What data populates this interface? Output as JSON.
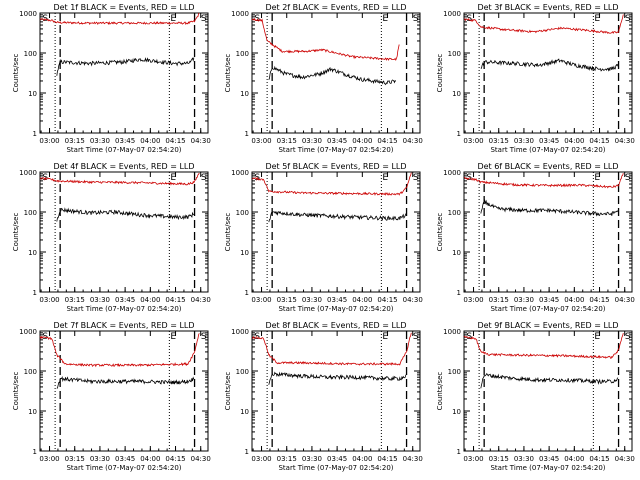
{
  "chart_data": {
    "type": "line",
    "ylabel": "Counts/sec",
    "xlabel": "Start Time (07-May-07 02:54:20)",
    "yscale": "log",
    "ylim": [
      1,
      1000
    ],
    "ytick_labels": [
      "1",
      "10",
      "100",
      "1000"
    ],
    "xlim_minutes": [
      0,
      100
    ],
    "xtick_labels": [
      "03:00",
      "03:15",
      "03:30",
      "03:45",
      "04:00",
      "04:15",
      "04:30"
    ],
    "marker_labels": [
      "S",
      "E",
      "S"
    ],
    "series_colors": {
      "events": "#000000",
      "lld": "#cc0000"
    },
    "panels": [
      {
        "title": "Det 1f BLACK = Events, RED = LLD",
        "lld": [
          [
            0,
            700
          ],
          [
            7,
            650
          ],
          [
            10,
            580
          ],
          [
            30,
            560
          ],
          [
            60,
            560
          ],
          [
            88,
            560
          ],
          [
            92,
            620
          ],
          [
            95,
            1000
          ]
        ],
        "events": [
          [
            10,
            30
          ],
          [
            12,
            60
          ],
          [
            30,
            55
          ],
          [
            50,
            60
          ],
          [
            60,
            70
          ],
          [
            80,
            55
          ],
          [
            88,
            55
          ],
          [
            90,
            60
          ],
          [
            92,
            80
          ]
        ]
      },
      {
        "title": "Det 2f BLACK = Events, RED = LLD",
        "lld": [
          [
            0,
            700
          ],
          [
            6,
            650
          ],
          [
            9,
            200
          ],
          [
            18,
            110
          ],
          [
            32,
            110
          ],
          [
            42,
            120
          ],
          [
            50,
            100
          ],
          [
            60,
            80
          ],
          [
            82,
            70
          ],
          [
            86,
            70
          ],
          [
            88,
            200
          ]
        ],
        "events": [
          [
            10,
            20
          ],
          [
            12,
            45
          ],
          [
            20,
            30
          ],
          [
            30,
            25
          ],
          [
            40,
            30
          ],
          [
            47,
            40
          ],
          [
            55,
            30
          ],
          [
            65,
            22
          ],
          [
            80,
            18
          ],
          [
            86,
            20
          ]
        ]
      },
      {
        "title": "Det 3f BLACK = Events, RED = LLD",
        "lld": [
          [
            0,
            700
          ],
          [
            7,
            650
          ],
          [
            10,
            450
          ],
          [
            25,
            380
          ],
          [
            42,
            340
          ],
          [
            58,
            420
          ],
          [
            70,
            380
          ],
          [
            88,
            320
          ],
          [
            92,
            330
          ],
          [
            95,
            1000
          ]
        ],
        "events": [
          [
            10,
            40
          ],
          [
            12,
            60
          ],
          [
            30,
            55
          ],
          [
            45,
            50
          ],
          [
            57,
            65
          ],
          [
            66,
            50
          ],
          [
            80,
            40
          ],
          [
            88,
            40
          ],
          [
            92,
            50
          ]
        ]
      },
      {
        "title": "Det 4f BLACK = Events, RED = LLD",
        "lld": [
          [
            0,
            700
          ],
          [
            7,
            650
          ],
          [
            10,
            600
          ],
          [
            30,
            560
          ],
          [
            60,
            540
          ],
          [
            88,
            500
          ],
          [
            92,
            560
          ],
          [
            95,
            1000
          ]
        ],
        "events": [
          [
            10,
            60
          ],
          [
            12,
            115
          ],
          [
            30,
            95
          ],
          [
            45,
            100
          ],
          [
            60,
            85
          ],
          [
            80,
            75
          ],
          [
            88,
            75
          ],
          [
            92,
            90
          ]
        ]
      },
      {
        "title": "Det 5f BLACK = Events, RED = LLD",
        "lld": [
          [
            0,
            700
          ],
          [
            7,
            650
          ],
          [
            10,
            330
          ],
          [
            30,
            300
          ],
          [
            60,
            290
          ],
          [
            88,
            280
          ],
          [
            92,
            400
          ],
          [
            95,
            1000
          ]
        ],
        "events": [
          [
            10,
            55
          ],
          [
            12,
            100
          ],
          [
            30,
            85
          ],
          [
            45,
            80
          ],
          [
            60,
            75
          ],
          [
            80,
            70
          ],
          [
            88,
            70
          ],
          [
            92,
            85
          ]
        ]
      },
      {
        "title": "Det 6f BLACK = Events, RED = LLD",
        "lld": [
          [
            0,
            700
          ],
          [
            7,
            650
          ],
          [
            10,
            560
          ],
          [
            30,
            480
          ],
          [
            50,
            460
          ],
          [
            70,
            470
          ],
          [
            88,
            420
          ],
          [
            92,
            460
          ],
          [
            95,
            1000
          ]
        ],
        "events": [
          [
            10,
            90
          ],
          [
            12,
            180
          ],
          [
            20,
            120
          ],
          [
            35,
            110
          ],
          [
            50,
            110
          ],
          [
            65,
            100
          ],
          [
            80,
            90
          ],
          [
            88,
            90
          ],
          [
            92,
            110
          ]
        ]
      },
      {
        "title": "Det 7f BLACK = Events, RED = LLD",
        "lld": [
          [
            0,
            700
          ],
          [
            7,
            650
          ],
          [
            10,
            250
          ],
          [
            15,
            150
          ],
          [
            30,
            140
          ],
          [
            60,
            140
          ],
          [
            88,
            150
          ],
          [
            92,
            300
          ],
          [
            95,
            1000
          ]
        ],
        "events": [
          [
            10,
            35
          ],
          [
            12,
            65
          ],
          [
            30,
            55
          ],
          [
            45,
            55
          ],
          [
            60,
            55
          ],
          [
            80,
            52
          ],
          [
            88,
            55
          ],
          [
            92,
            65
          ]
        ]
      },
      {
        "title": "Det 8f BLACK = Events, RED = LLD",
        "lld": [
          [
            0,
            700
          ],
          [
            7,
            650
          ],
          [
            10,
            250
          ],
          [
            15,
            160
          ],
          [
            30,
            160
          ],
          [
            60,
            150
          ],
          [
            88,
            150
          ],
          [
            92,
            300
          ],
          [
            95,
            1000
          ]
        ],
        "events": [
          [
            10,
            45
          ],
          [
            12,
            85
          ],
          [
            30,
            75
          ],
          [
            45,
            70
          ],
          [
            60,
            70
          ],
          [
            80,
            65
          ],
          [
            88,
            65
          ],
          [
            92,
            75
          ]
        ]
      },
      {
        "title": "Det 9f BLACK = Events, RED = LLD",
        "lld": [
          [
            0,
            700
          ],
          [
            7,
            650
          ],
          [
            10,
            300
          ],
          [
            15,
            260
          ],
          [
            30,
            250
          ],
          [
            60,
            240
          ],
          [
            88,
            220
          ],
          [
            92,
            330
          ],
          [
            95,
            1000
          ]
        ],
        "events": [
          [
            10,
            40
          ],
          [
            12,
            80
          ],
          [
            30,
            65
          ],
          [
            45,
            60
          ],
          [
            60,
            60
          ],
          [
            80,
            55
          ],
          [
            88,
            55
          ],
          [
            92,
            65
          ]
        ]
      }
    ]
  }
}
